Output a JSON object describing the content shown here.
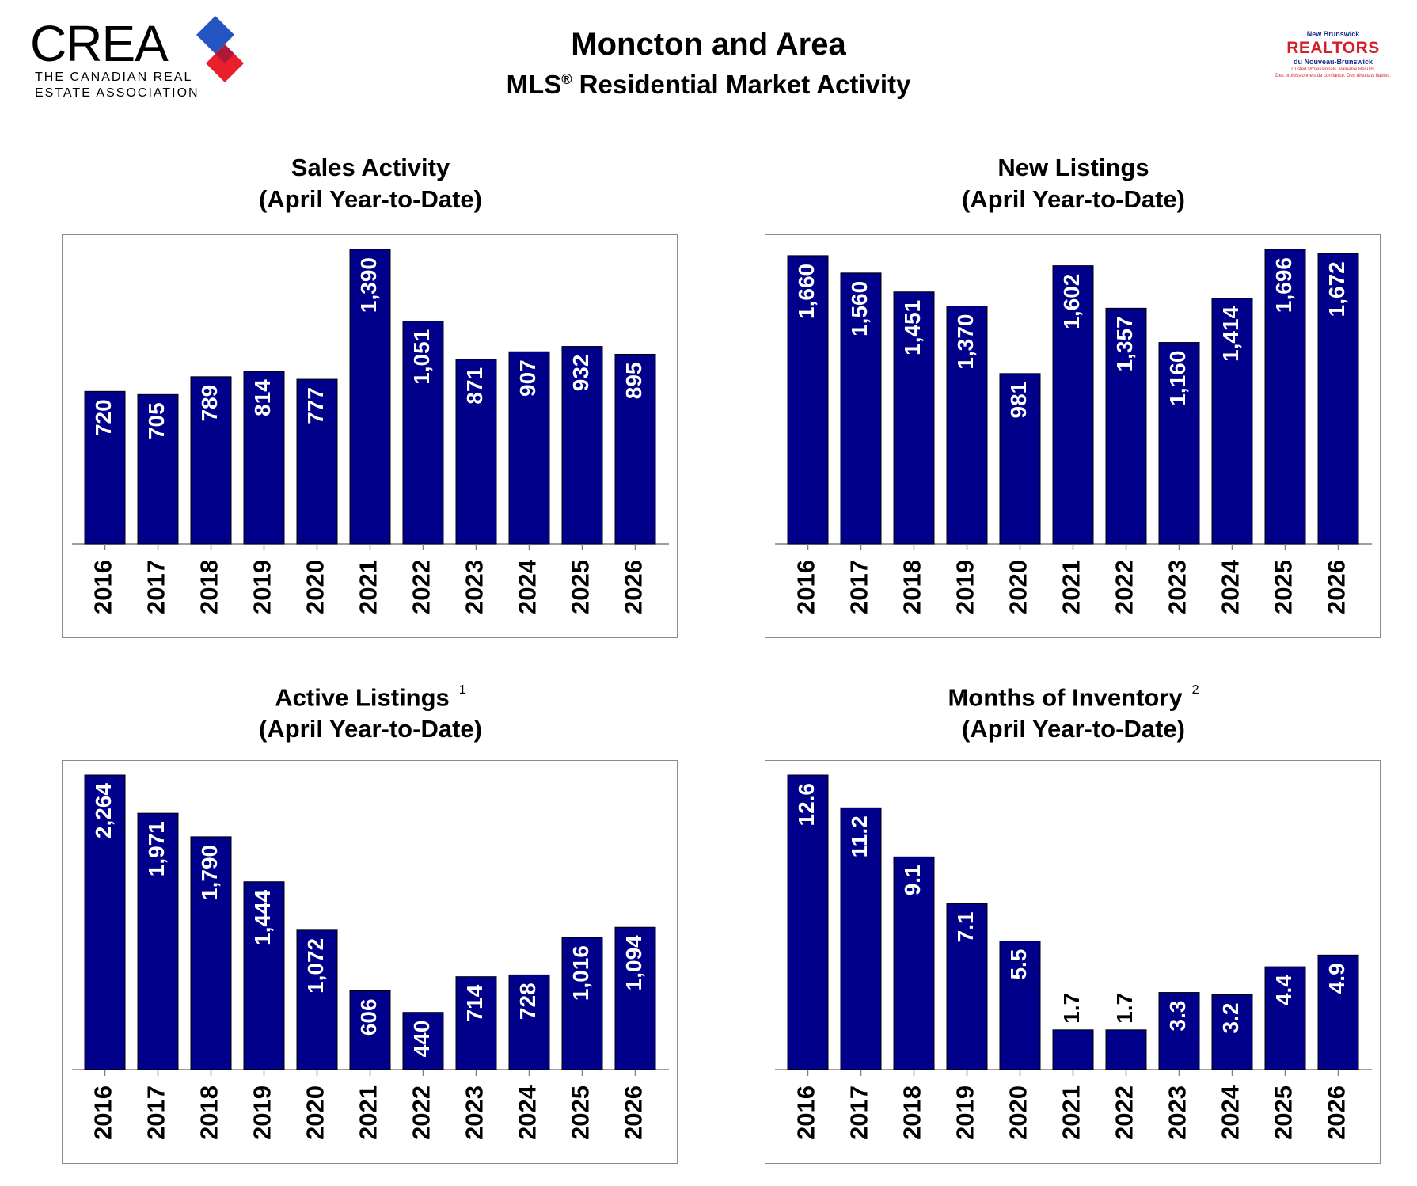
{
  "header": {
    "crea_wordmark": "CREA",
    "crea_line1": "THE CANADIAN REAL",
    "crea_line2": "ESTATE ASSOCIATION",
    "title": "Moncton and Area",
    "subtitle_prefix": "MLS",
    "subtitle_mark": "®",
    "subtitle_suffix": " Residential Market Activity",
    "realtors_top": "New Brunswick",
    "realtors_main": "REALTORS",
    "realtors_sub": "du Nouveau-Brunswick",
    "realtors_tag1": "Trusted Professionals. Valuable Results.",
    "realtors_tag2": "Des professionnels de confiance. Des résultats fiables.",
    "colors": {
      "crea_blue": "#2455c3",
      "crea_red": "#e8202a",
      "realtors_red": "#d21f2a",
      "realtors_blue": "#1a2a8c"
    }
  },
  "chart_data": [
    {
      "id": "sales",
      "type": "bar",
      "title": "Sales Activity",
      "subtitle": "(April Year-to-Date)",
      "footnote": "",
      "categories": [
        "2016",
        "2017",
        "2018",
        "2019",
        "2020",
        "2021",
        "2022",
        "2023",
        "2024",
        "2025",
        "2026"
      ],
      "values": [
        720,
        705,
        789,
        814,
        777,
        1390,
        1051,
        871,
        907,
        932,
        895
      ],
      "labels": [
        "720",
        "705",
        "789",
        "814",
        "777",
        "1,390",
        "1,051",
        "871",
        "907",
        "932",
        "895"
      ],
      "ylim": [
        0,
        1390
      ],
      "bar_color": "#00008b",
      "grid": false
    },
    {
      "id": "new-listings",
      "type": "bar",
      "title": "New Listings",
      "subtitle": "(April Year-to-Date)",
      "footnote": "",
      "categories": [
        "2016",
        "2017",
        "2018",
        "2019",
        "2020",
        "2021",
        "2022",
        "2023",
        "2024",
        "2025",
        "2026"
      ],
      "values": [
        1660,
        1560,
        1451,
        1370,
        981,
        1602,
        1357,
        1160,
        1414,
        1696,
        1672
      ],
      "labels": [
        "1,660",
        "1,560",
        "1,451",
        "1,370",
        "981",
        "1,602",
        "1,357",
        "1,160",
        "1,414",
        "1,696",
        "1,672"
      ],
      "ylim": [
        0,
        1696
      ],
      "bar_color": "#00008b",
      "grid": false
    },
    {
      "id": "active-listings",
      "type": "bar",
      "title": "Active Listings",
      "subtitle": "(April Year-to-Date)",
      "footnote": "1",
      "categories": [
        "2016",
        "2017",
        "2018",
        "2019",
        "2020",
        "2021",
        "2022",
        "2023",
        "2024",
        "2025",
        "2026"
      ],
      "values": [
        2264,
        1971,
        1790,
        1444,
        1072,
        606,
        440,
        714,
        728,
        1016,
        1094
      ],
      "labels": [
        "2,264",
        "1,971",
        "1,790",
        "1,444",
        "1,072",
        "606",
        "440",
        "714",
        "728",
        "1,016",
        "1,094"
      ],
      "ylim": [
        0,
        2264
      ],
      "bar_color": "#00008b",
      "grid": false
    },
    {
      "id": "months-inventory",
      "type": "bar",
      "title": "Months of Inventory",
      "subtitle": "(April Year-to-Date)",
      "footnote": "2",
      "categories": [
        "2016",
        "2017",
        "2018",
        "2019",
        "2020",
        "2021",
        "2022",
        "2023",
        "2024",
        "2025",
        "2026"
      ],
      "values": [
        12.6,
        11.2,
        9.1,
        7.1,
        5.5,
        1.7,
        1.7,
        3.3,
        3.2,
        4.4,
        4.9
      ],
      "labels": [
        "12.6",
        "11.2",
        "9.1",
        "7.1",
        "5.5",
        "1.7",
        "1.7",
        "3.3",
        "3.2",
        "4.4",
        "4.9"
      ],
      "ylim": [
        0,
        12.6
      ],
      "bar_color": "#00008b",
      "grid": false
    }
  ]
}
